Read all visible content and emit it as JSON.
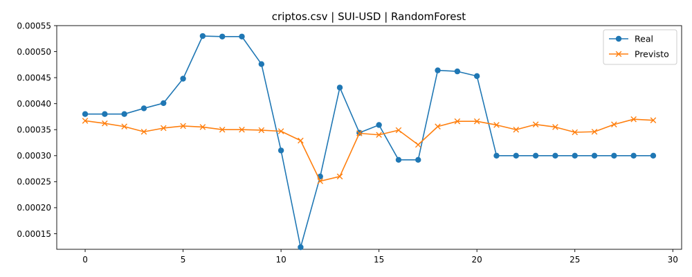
{
  "chart_data": {
    "type": "line",
    "title": "criptos.csv | SUI-USD | RandomForest",
    "xlabel": "",
    "ylabel": "",
    "xlim": [
      -1.45,
      30.45
    ],
    "ylim": [
      0.00012,
      0.00055
    ],
    "x_ticks": [
      0,
      5,
      10,
      15,
      20,
      25,
      30
    ],
    "y_ticks": [
      0.00015,
      0.0002,
      0.00025,
      0.0003,
      0.00035,
      0.0004,
      0.00045,
      0.0005,
      0.00055
    ],
    "x_tick_labels": [
      "0",
      "5",
      "10",
      "15",
      "20",
      "25",
      "30"
    ],
    "y_tick_labels": [
      "0.00015",
      "0.00020",
      "0.00025",
      "0.00030",
      "0.00035",
      "0.00040",
      "0.00045",
      "0.00050",
      "0.00055"
    ],
    "x": [
      0,
      1,
      2,
      3,
      4,
      5,
      6,
      7,
      8,
      9,
      10,
      11,
      12,
      13,
      14,
      15,
      16,
      17,
      18,
      19,
      20,
      21,
      22,
      23,
      24,
      25,
      26,
      27,
      28,
      29
    ],
    "grid": false,
    "legend_position": "upper right",
    "series": [
      {
        "name": "Real",
        "color": "#1f77b4",
        "marker": "circle",
        "values": [
          0.00038,
          0.00038,
          0.00038,
          0.000391,
          0.000401,
          0.000448,
          0.00053,
          0.000529,
          0.000529,
          0.000476,
          0.00031,
          0.000124,
          0.00026,
          0.000431,
          0.000344,
          0.000359,
          0.000292,
          0.000292,
          0.000464,
          0.000462,
          0.000453,
          0.0003,
          0.0003,
          0.0003,
          0.0003,
          0.0003,
          0.0003,
          0.0003,
          0.0003,
          0.0003
        ]
      },
      {
        "name": "Previsto",
        "color": "#ff7f0e",
        "marker": "x",
        "values": [
          0.000367,
          0.000362,
          0.000356,
          0.000346,
          0.000353,
          0.000357,
          0.000355,
          0.00035,
          0.00035,
          0.000349,
          0.000347,
          0.000329,
          0.000251,
          0.00026,
          0.000343,
          0.00034,
          0.000349,
          0.000321,
          0.000356,
          0.000366,
          0.000366,
          0.000359,
          0.00035,
          0.00036,
          0.000355,
          0.000345,
          0.000346,
          0.00036,
          0.00037,
          0.000368
        ]
      }
    ]
  }
}
